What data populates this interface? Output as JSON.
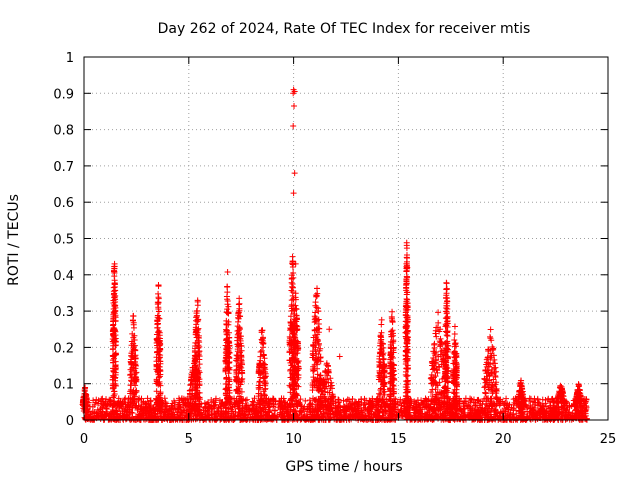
{
  "chart_data": {
    "type": "scatter",
    "title": "Day 262 of 2024, Rate Of TEC Index for receiver mtis",
    "xlabel": "GPS time / hours",
    "ylabel": "ROTI / TECUs",
    "xlim": [
      0,
      25
    ],
    "ylim": [
      0,
      1
    ],
    "x_ticks": [
      0,
      5,
      10,
      15,
      20,
      25
    ],
    "x_tick_labels": [
      "0",
      "5",
      "10",
      "15",
      "20",
      "25"
    ],
    "y_ticks": [
      0,
      0.1,
      0.2,
      0.3,
      0.4,
      0.5,
      0.6,
      0.7,
      0.8,
      0.9,
      1
    ],
    "y_tick_labels": [
      "0",
      "0.1",
      "0.2",
      "0.3",
      "0.4",
      "0.5",
      "0.6",
      "0.7",
      "0.8",
      "0.9",
      "1"
    ],
    "grid": true,
    "marker": "+",
    "color": "#ff0000",
    "series": [
      {
        "name": "ROTI",
        "bursts": [
          {
            "t": 0.05,
            "peak": 0.09,
            "width": 0.12
          },
          {
            "t": 1.45,
            "peak": 0.47,
            "width": 0.08
          },
          {
            "t": 2.35,
            "peak": 0.29,
            "width": 0.15
          },
          {
            "t": 3.55,
            "peak": 0.38,
            "width": 0.1
          },
          {
            "t": 5.4,
            "peak": 0.37,
            "width": 0.12
          },
          {
            "t": 5.25,
            "peak": 0.18,
            "width": 0.2
          },
          {
            "t": 6.85,
            "peak": 0.41,
            "width": 0.1
          },
          {
            "t": 7.4,
            "peak": 0.34,
            "width": 0.15
          },
          {
            "t": 8.5,
            "peak": 0.26,
            "width": 0.18
          },
          {
            "t": 9.95,
            "peak": 0.45,
            "width": 0.15
          },
          {
            "t": 10.1,
            "peak": 0.35,
            "width": 0.15
          },
          {
            "t": 11.1,
            "peak": 0.38,
            "width": 0.2
          },
          {
            "t": 11.6,
            "peak": 0.16,
            "width": 0.3
          },
          {
            "t": 14.2,
            "peak": 0.28,
            "width": 0.15
          },
          {
            "t": 14.7,
            "peak": 0.31,
            "width": 0.1
          },
          {
            "t": 15.4,
            "peak": 0.5,
            "width": 0.06
          },
          {
            "t": 16.9,
            "peak": 0.3,
            "width": 0.35
          },
          {
            "t": 17.3,
            "peak": 0.41,
            "width": 0.08
          },
          {
            "t": 17.7,
            "peak": 0.27,
            "width": 0.1
          },
          {
            "t": 19.4,
            "peak": 0.25,
            "width": 0.3
          },
          {
            "t": 20.85,
            "peak": 0.11,
            "width": 0.15
          },
          {
            "t": 22.75,
            "peak": 0.1,
            "width": 0.2
          },
          {
            "t": 23.6,
            "peak": 0.1,
            "width": 0.15
          }
        ],
        "spike_points": [
          {
            "x": 10.0,
            "y": 0.91
          },
          {
            "x": 10.05,
            "y": 0.905
          },
          {
            "x": 9.98,
            "y": 0.9
          },
          {
            "x": 10.02,
            "y": 0.865
          },
          {
            "x": 9.98,
            "y": 0.81
          },
          {
            "x": 10.05,
            "y": 0.68
          },
          {
            "x": 10.0,
            "y": 0.625
          },
          {
            "x": 9.95,
            "y": 0.45
          },
          {
            "x": 10.1,
            "y": 0.43
          },
          {
            "x": 15.4,
            "y": 0.395
          },
          {
            "x": 12.2,
            "y": 0.175
          },
          {
            "x": 11.7,
            "y": 0.25
          }
        ],
        "baseline_max": 0.06,
        "baseline_range": [
          0,
          24
        ]
      }
    ]
  }
}
